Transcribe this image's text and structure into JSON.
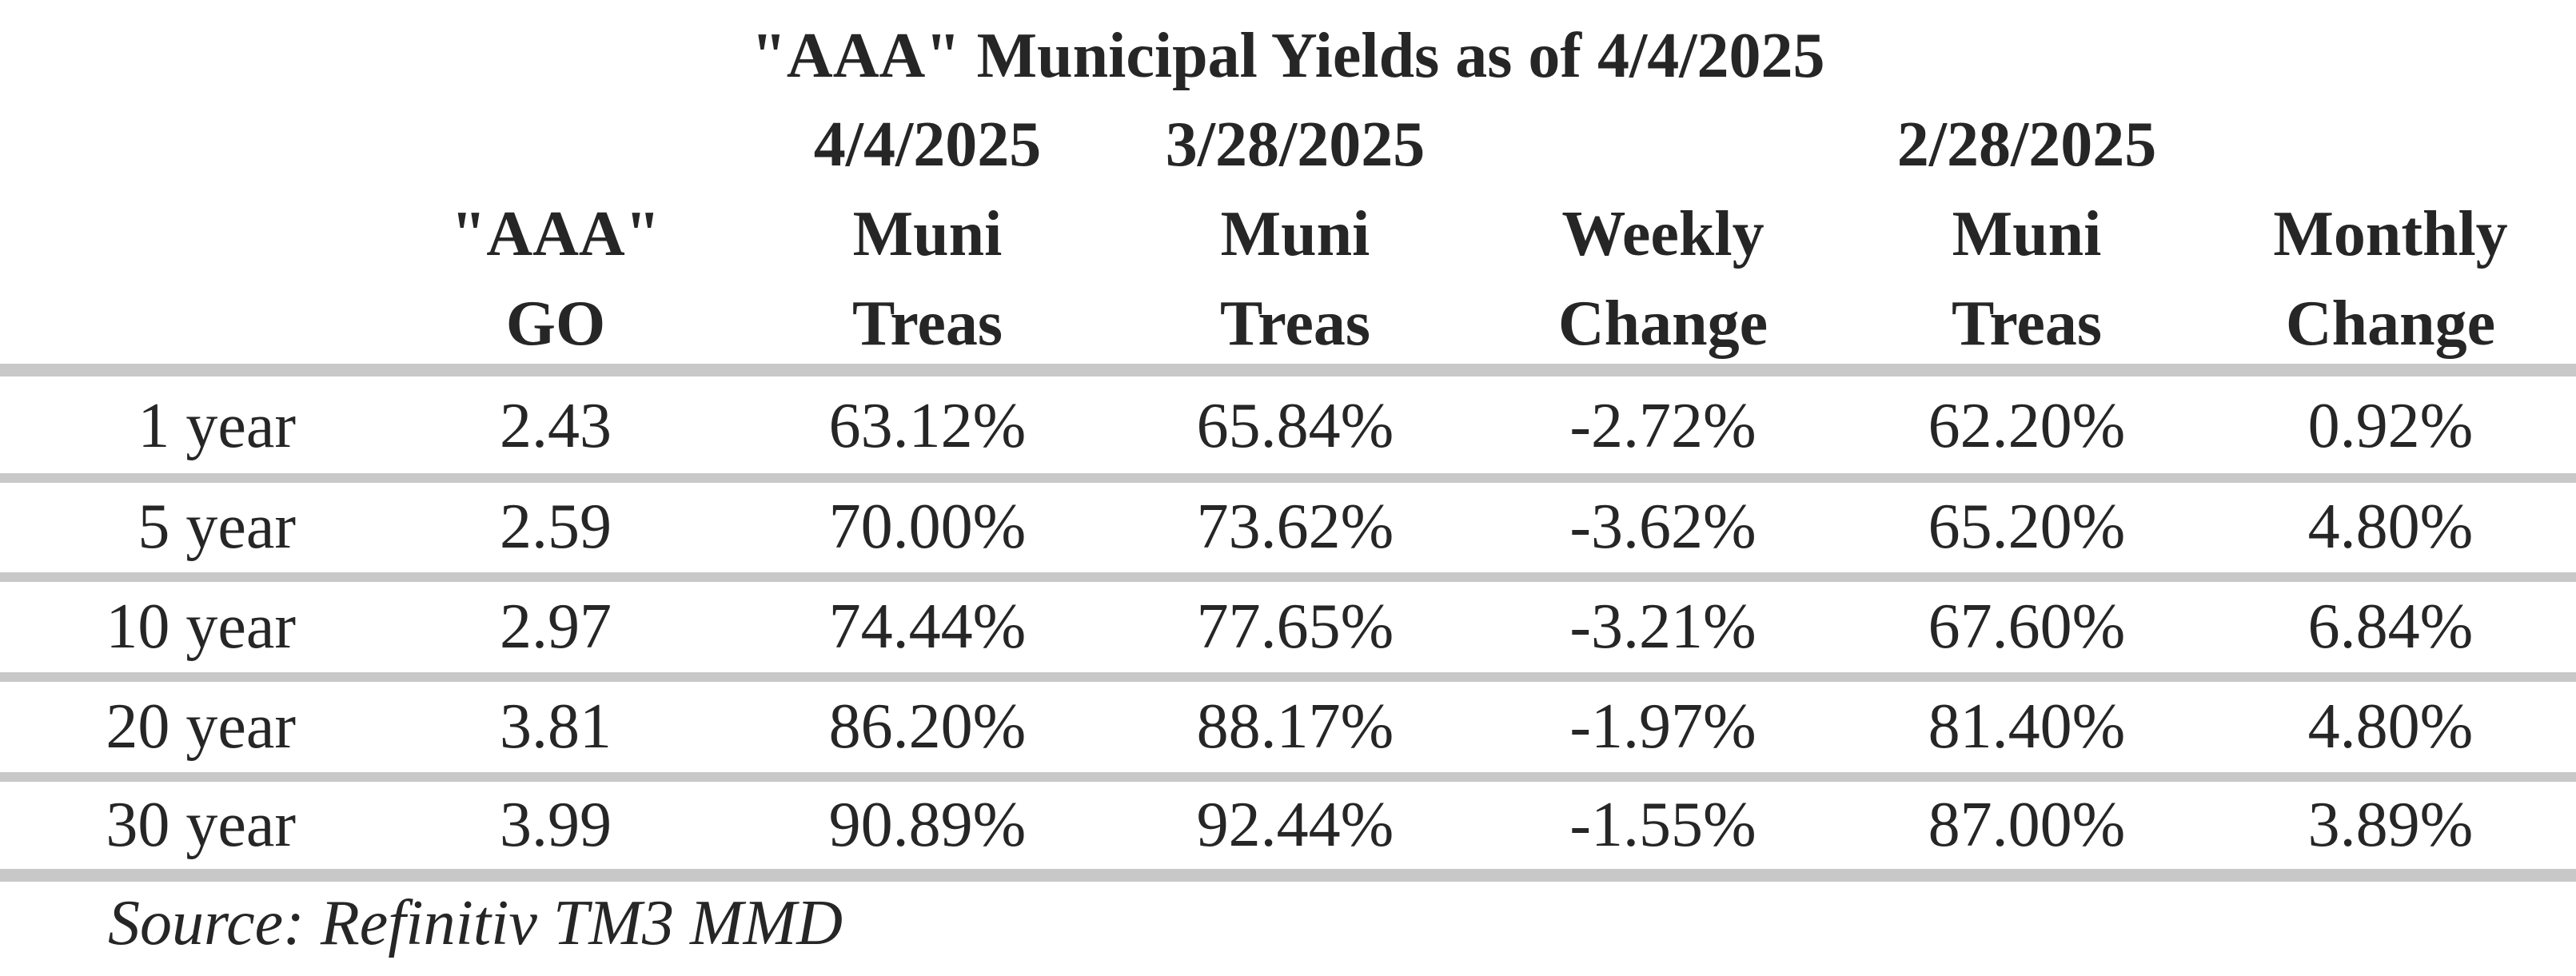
{
  "title": "\"AAA\" Municipal Yields as of 4/4/2025",
  "header": {
    "dates": {
      "col2": "4/4/2025",
      "col3": "3/28/2025",
      "col5": "2/28/2025"
    },
    "columns": [
      {
        "line1": "",
        "line2": ""
      },
      {
        "line1": "\"AAA\"",
        "line2": "GO"
      },
      {
        "line1": "Muni",
        "line2": "Treas"
      },
      {
        "line1": "Muni",
        "line2": "Treas"
      },
      {
        "line1": "Weekly",
        "line2": "Change"
      },
      {
        "line1": "Muni",
        "line2": "Treas"
      },
      {
        "line1": "Monthly",
        "line2": "Change"
      }
    ]
  },
  "rows": [
    {
      "cells": [
        "1 year",
        "2.43",
        "63.12%",
        "65.84%",
        "-2.72%",
        "62.20%",
        "0.92%"
      ]
    },
    {
      "cells": [
        "5 year",
        "2.59",
        "70.00%",
        "73.62%",
        "-3.62%",
        "65.20%",
        "4.80%"
      ]
    },
    {
      "cells": [
        "10 year",
        "2.97",
        "74.44%",
        "77.65%",
        "-3.21%",
        "67.60%",
        "6.84%"
      ]
    },
    {
      "cells": [
        "20 year",
        "3.81",
        "86.20%",
        "88.17%",
        "-1.97%",
        "81.40%",
        "4.80%"
      ]
    },
    {
      "cells": [
        "30 year",
        "3.99",
        "90.89%",
        "92.44%",
        "-1.55%",
        "87.00%",
        "3.89%"
      ]
    }
  ],
  "source": "Source: Refinitiv TM3 MMD",
  "colors": {
    "text": "#262626",
    "rule": "#c8c8c8",
    "background": "#ffffff"
  }
}
